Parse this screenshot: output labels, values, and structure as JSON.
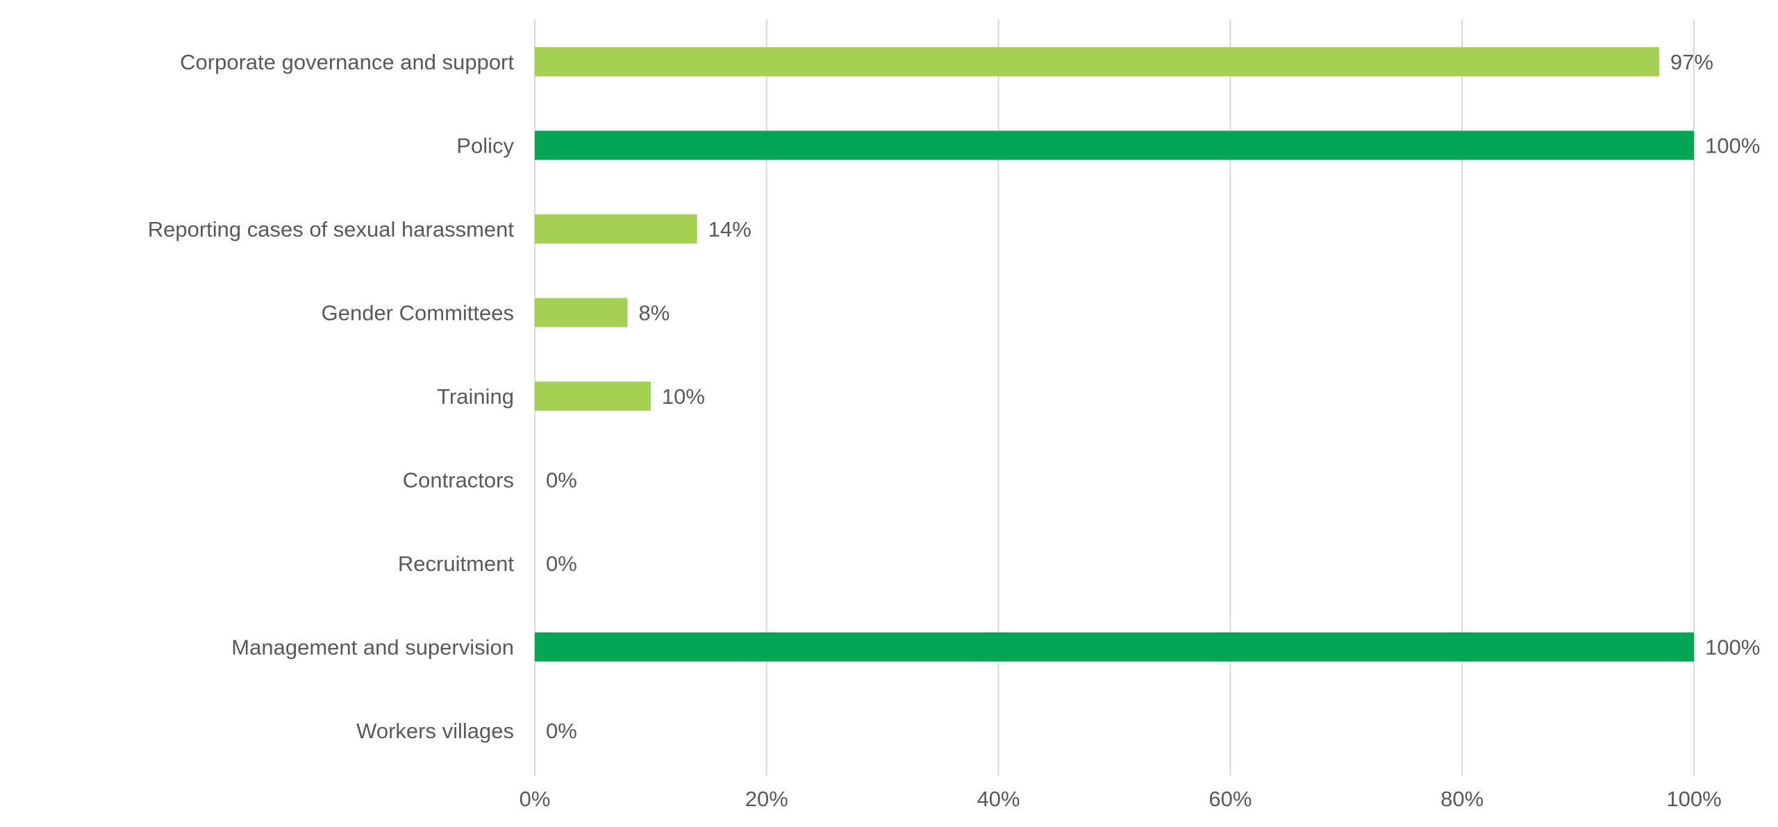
{
  "chart_data": {
    "type": "bar",
    "orientation": "horizontal",
    "title": "",
    "xlabel": "",
    "ylabel": "",
    "xlim": [
      0,
      100
    ],
    "grid": true,
    "categories": [
      "Corporate governance and support",
      "Policy",
      "Reporting cases of sexual harassment",
      "Gender Committees",
      "Training",
      "Contractors",
      "Recruitment",
      "Management and supervision",
      "Workers villages"
    ],
    "values": [
      97,
      100,
      14,
      8,
      10,
      0,
      0,
      100,
      0
    ],
    "value_labels": [
      "97%",
      "100%",
      "14%",
      "8%",
      "10%",
      "0%",
      "0%",
      "100%",
      "0%"
    ],
    "ticks": [
      0,
      20,
      40,
      60,
      80,
      100
    ],
    "tick_labels": [
      "0%",
      "20%",
      "40%",
      "60%",
      "80%",
      "100%"
    ],
    "colors": {
      "partial": "#a5d152",
      "full": "#00a651",
      "grid": "#d9d9d9",
      "text": "#595959"
    }
  }
}
